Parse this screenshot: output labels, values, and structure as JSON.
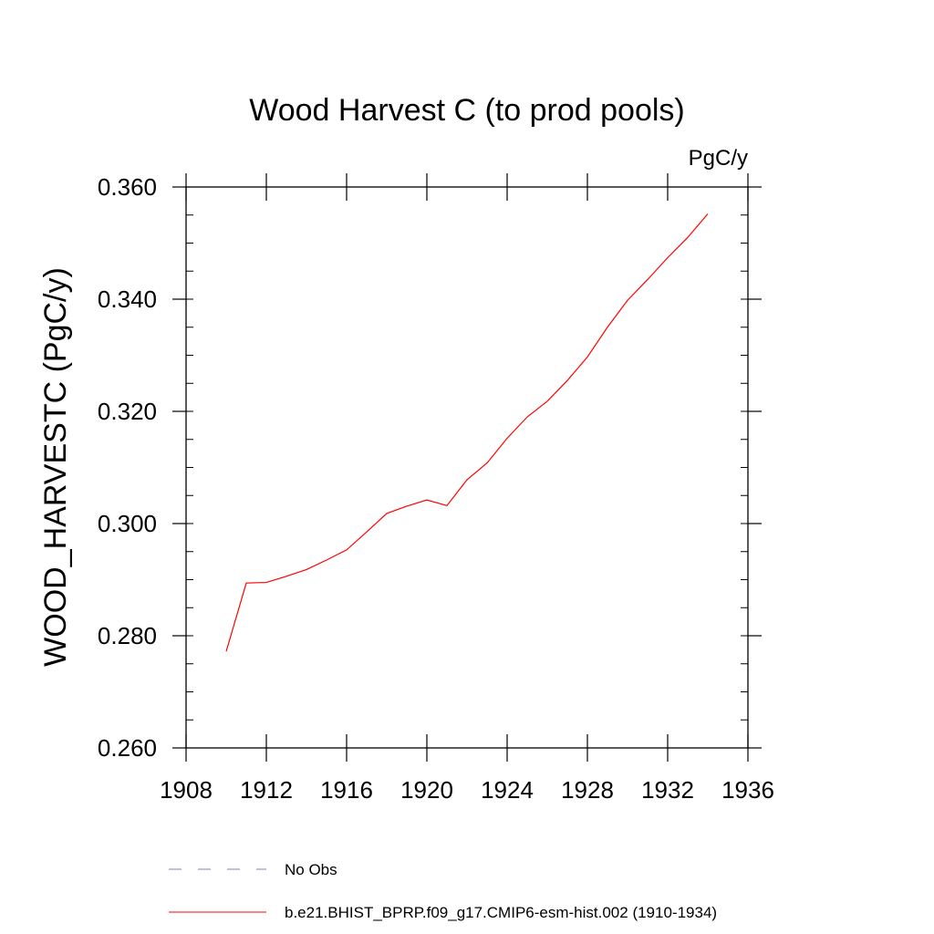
{
  "chart_data": {
    "type": "line",
    "title": "Wood Harvest C (to prod pools)",
    "units_label": "PgC/y",
    "xlabel": "",
    "ylabel": "WOOD_HARVESTC  (PgC/y)",
    "xlim": [
      1908,
      1936
    ],
    "ylim": [
      0.26,
      0.36
    ],
    "x_ticks": [
      1908,
      1912,
      1916,
      1920,
      1924,
      1928,
      1932,
      1936
    ],
    "x_tick_labels": [
      "1908",
      "1912",
      "1916",
      "1920",
      "1924",
      "1928",
      "1932",
      "1936"
    ],
    "y_ticks": [
      0.26,
      0.28,
      0.3,
      0.32,
      0.34,
      0.36
    ],
    "y_tick_labels": [
      "0.260",
      "0.280",
      "0.300",
      "0.320",
      "0.340",
      "0.360"
    ],
    "grid": false,
    "series": [
      {
        "name": "b.e21.BHIST_BPRP.f09_g17.CMIP6-esm-hist.002 (1910-1934)",
        "color": "#ff0000",
        "style": "solid",
        "x": [
          1910,
          1911,
          1912,
          1913,
          1914,
          1915,
          1916,
          1917,
          1918,
          1919,
          1920,
          1921,
          1922,
          1923,
          1924,
          1925,
          1926,
          1927,
          1928,
          1929,
          1930,
          1931,
          1932,
          1933,
          1934
        ],
        "values": [
          0.2772,
          0.2894,
          0.2895,
          0.2906,
          0.2918,
          0.2935,
          0.2953,
          0.2985,
          0.3018,
          0.3031,
          0.3042,
          0.3032,
          0.3078,
          0.3108,
          0.3152,
          0.319,
          0.3218,
          0.3255,
          0.3297,
          0.335,
          0.3398,
          0.3435,
          0.3474,
          0.351,
          0.3552
        ]
      }
    ],
    "legend": {
      "position": "bottom",
      "entries": [
        {
          "label": "No Obs",
          "color": "#8080c0",
          "style": "dashed"
        },
        {
          "label": "b.e21.BHIST_BPRP.f09_g17.CMIP6-esm-hist.002 (1910-1934)",
          "color": "#ff0000",
          "style": "solid"
        }
      ]
    }
  }
}
